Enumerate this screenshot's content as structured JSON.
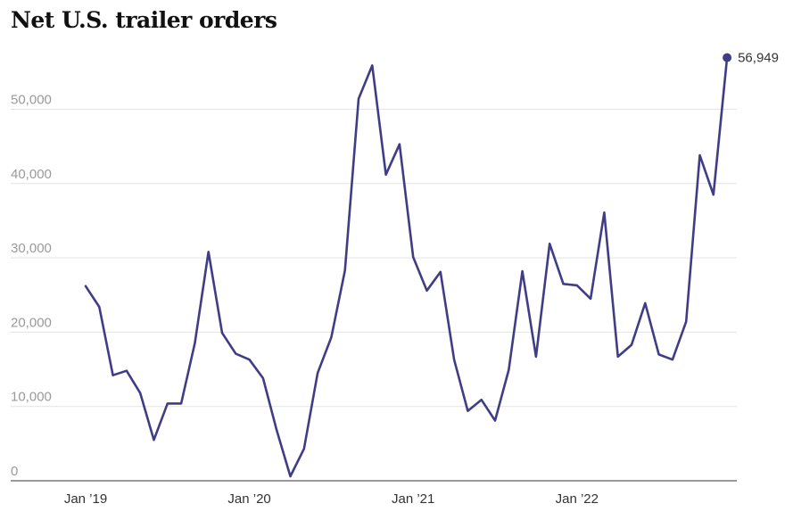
{
  "chart_data": {
    "type": "line",
    "title": "Net U.S. trailer orders",
    "xlabel": "",
    "ylabel": "",
    "ylim": [
      0,
      60000
    ],
    "y_ticks": [
      0,
      10000,
      20000,
      30000,
      40000,
      50000
    ],
    "y_tick_labels": [
      "0",
      "10,000",
      "20,000",
      "30,000",
      "40,000",
      "50,000"
    ],
    "x_ticks": [
      "Jan ’19",
      "Jan ’20",
      "Jan ’21",
      "Jan ’22"
    ],
    "grid": true,
    "line_color": "#3f3d86",
    "end_label": "56,949",
    "series": [
      {
        "x": [
          "2019-01",
          "2019-02",
          "2019-03",
          "2019-04",
          "2019-05",
          "2019-06",
          "2019-07",
          "2019-08",
          "2019-09",
          "2019-10",
          "2019-11",
          "2019-12",
          "2020-01",
          "2020-02",
          "2020-03",
          "2020-04",
          "2020-05",
          "2020-06",
          "2020-07",
          "2020-08",
          "2020-09",
          "2020-10",
          "2020-11",
          "2020-12",
          "2021-01",
          "2021-02",
          "2021-03",
          "2021-04",
          "2021-05",
          "2021-06",
          "2021-07",
          "2021-08",
          "2021-09",
          "2021-10",
          "2021-11",
          "2021-12",
          "2022-01",
          "2022-02",
          "2022-03",
          "2022-04",
          "2022-05",
          "2022-06",
          "2022-07",
          "2022-08",
          "2022-09",
          "2022-10",
          "2022-11",
          "2022-12"
        ],
        "values": [
          26200,
          23400,
          14200,
          14800,
          11800,
          5500,
          10400,
          10400,
          18500,
          30800,
          19900,
          17100,
          16300,
          13800,
          6800,
          600,
          4300,
          14500,
          19300,
          28300,
          51400,
          55900,
          41200,
          45300,
          30100,
          25600,
          28100,
          16300,
          9400,
          10900,
          8100,
          14900,
          28200,
          16700,
          31900,
          26500,
          26300,
          24500,
          36100,
          16700,
          18300,
          23900,
          17000,
          16300,
          21400,
          43800,
          38500,
          56949
        ]
      }
    ]
  }
}
